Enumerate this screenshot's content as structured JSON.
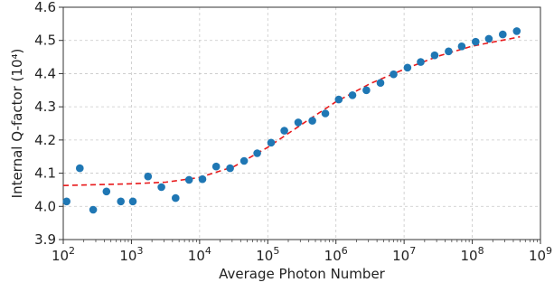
{
  "chart_data": {
    "type": "scatter",
    "title": "",
    "xlabel": "Average Photon Number",
    "ylabel": "Internal Q-factor (10⁴)",
    "x_scale": "log",
    "xlim": [
      100,
      1000000000
    ],
    "ylim": [
      3.9,
      4.6
    ],
    "grid": true,
    "x_ticks": [
      {
        "value": 100,
        "base": "10",
        "exp": "2"
      },
      {
        "value": 1000,
        "base": "10",
        "exp": "3"
      },
      {
        "value": 10000,
        "base": "10",
        "exp": "4"
      },
      {
        "value": 100000,
        "base": "10",
        "exp": "5"
      },
      {
        "value": 1000000,
        "base": "10",
        "exp": "6"
      },
      {
        "value": 10000000,
        "base": "10",
        "exp": "7"
      },
      {
        "value": 100000000,
        "base": "10",
        "exp": "8"
      },
      {
        "value": 1000000000,
        "base": "10",
        "exp": "9"
      }
    ],
    "y_ticks": [
      "3.9",
      "4.0",
      "4.1",
      "4.2",
      "4.3",
      "4.4",
      "4.5",
      "4.6"
    ],
    "series": [
      {
        "kind": "scatter",
        "color": "#1f77b4",
        "points": [
          [
            112,
            4.015
          ],
          [
            175,
            4.115
          ],
          [
            275,
            3.99
          ],
          [
            430,
            4.045
          ],
          [
            700,
            4.015
          ],
          [
            1050,
            4.015
          ],
          [
            1750,
            4.09
          ],
          [
            2750,
            4.058
          ],
          [
            4450,
            4.025
          ],
          [
            7000,
            4.08
          ],
          [
            11000,
            4.082
          ],
          [
            17500,
            4.12
          ],
          [
            28000,
            4.115
          ],
          [
            45000,
            4.137
          ],
          [
            70000,
            4.16
          ],
          [
            112000,
            4.192
          ],
          [
            175000,
            4.228
          ],
          [
            280000,
            4.253
          ],
          [
            450000,
            4.258
          ],
          [
            700000,
            4.28
          ],
          [
            1100000,
            4.322
          ],
          [
            1750000,
            4.335
          ],
          [
            2800000,
            4.35
          ],
          [
            4500000,
            4.372
          ],
          [
            7000000,
            4.398
          ],
          [
            11200000,
            4.418
          ],
          [
            17500000,
            4.435
          ],
          [
            28000000,
            4.455
          ],
          [
            45000000,
            4.467
          ],
          [
            70000000,
            4.482
          ],
          [
            112000000,
            4.496
          ],
          [
            175000000,
            4.505
          ],
          [
            280000000,
            4.518
          ],
          [
            450000000,
            4.528
          ]
        ]
      },
      {
        "kind": "line",
        "style": "dashed",
        "color": "#e8191b",
        "points": [
          [
            100,
            4.063
          ],
          [
            1000,
            4.068
          ],
          [
            3200,
            4.073
          ],
          [
            10000,
            4.087
          ],
          [
            32000,
            4.12
          ],
          [
            100000,
            4.178
          ],
          [
            320000,
            4.248
          ],
          [
            1000000,
            4.315
          ],
          [
            3200000,
            4.37
          ],
          [
            10000000,
            4.413
          ],
          [
            32000000,
            4.453
          ],
          [
            100000000,
            4.483
          ],
          [
            320000000,
            4.503
          ],
          [
            500000000,
            4.511
          ]
        ]
      }
    ]
  }
}
